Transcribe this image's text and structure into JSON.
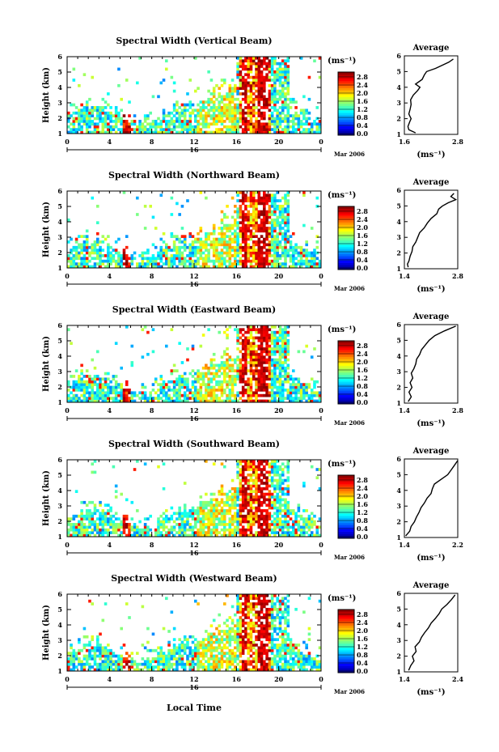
{
  "figure": {
    "xlabel": "Local Time",
    "colorbar_unit": "(ms⁻¹)",
    "average_title": "Average",
    "average_unit": "(ms⁻¹)",
    "date_label": "Mar 2006",
    "day_label": "16"
  },
  "chart_data": [
    {
      "type": "heatmap",
      "title": "Spectral Width (Vertical Beam)",
      "xlabel": "Local Time",
      "ylabel": "Height (km)",
      "x_ticks": [
        "0",
        "4",
        "8",
        "12",
        "16",
        "20",
        "0"
      ],
      "y_ticks": [
        "1",
        "2",
        "3",
        "4",
        "5",
        "6"
      ],
      "xlim": [
        0,
        24
      ],
      "ylim": [
        1,
        6
      ],
      "colorbar": {
        "ticks": [
          "0.0",
          "0.4",
          "0.8",
          "1.2",
          "1.6",
          "2.0",
          "2.4",
          "2.8"
        ],
        "range": [
          0.0,
          2.8
        ]
      },
      "average": {
        "xlim": [
          1.6,
          2.8
        ],
        "xticks": [
          "1.6",
          "2.8"
        ],
        "profile": [
          [
            1.1,
            1.85
          ],
          [
            1.3,
            1.7
          ],
          [
            1.5,
            1.68
          ],
          [
            1.8,
            1.72
          ],
          [
            2.0,
            1.75
          ],
          [
            2.3,
            1.7
          ],
          [
            2.6,
            1.73
          ],
          [
            2.9,
            1.75
          ],
          [
            3.2,
            1.74
          ],
          [
            3.5,
            1.8
          ],
          [
            3.8,
            1.9
          ],
          [
            4.0,
            1.95
          ],
          [
            4.2,
            1.85
          ],
          [
            4.5,
            2.0
          ],
          [
            4.8,
            2.05
          ],
          [
            5.0,
            2.1
          ],
          [
            5.2,
            2.3
          ],
          [
            5.4,
            2.45
          ],
          [
            5.6,
            2.6
          ],
          [
            5.8,
            2.7
          ]
        ]
      }
    },
    {
      "type": "heatmap",
      "title": "Spectral Width (Northward Beam)",
      "xlabel": "Local Time",
      "ylabel": "Height (km)",
      "x_ticks": [
        "0",
        "4",
        "8",
        "12",
        "16",
        "20",
        "0"
      ],
      "y_ticks": [
        "1",
        "2",
        "3",
        "4",
        "5",
        "6"
      ],
      "xlim": [
        0,
        24
      ],
      "ylim": [
        1,
        6
      ],
      "colorbar": {
        "ticks": [
          "0.0",
          "0.4",
          "0.8",
          "1.2",
          "1.6",
          "2.0",
          "2.4",
          "2.8"
        ],
        "range": [
          0.0,
          2.8
        ]
      },
      "average": {
        "xlim": [
          1.4,
          2.8
        ],
        "xticks": [
          "1.4",
          "2.8"
        ],
        "profile": [
          [
            1.1,
            1.5
          ],
          [
            1.3,
            1.48
          ],
          [
            1.5,
            1.52
          ],
          [
            1.8,
            1.55
          ],
          [
            2.1,
            1.6
          ],
          [
            2.4,
            1.62
          ],
          [
            2.7,
            1.7
          ],
          [
            3.0,
            1.75
          ],
          [
            3.3,
            1.8
          ],
          [
            3.6,
            1.92
          ],
          [
            3.9,
            2.0
          ],
          [
            4.2,
            2.1
          ],
          [
            4.5,
            2.25
          ],
          [
            4.8,
            2.3
          ],
          [
            5.0,
            2.4
          ],
          [
            5.2,
            2.55
          ],
          [
            5.4,
            2.75
          ],
          [
            5.6,
            2.62
          ],
          [
            5.8,
            2.7
          ]
        ]
      }
    },
    {
      "type": "heatmap",
      "title": "Spectral Width (Eastward Beam)",
      "xlabel": "Local Time",
      "ylabel": "Height (km)",
      "x_ticks": [
        "0",
        "4",
        "8",
        "12",
        "16",
        "20",
        "0"
      ],
      "y_ticks": [
        "1",
        "2",
        "3",
        "4",
        "5",
        "6"
      ],
      "xlim": [
        0,
        24
      ],
      "ylim": [
        1,
        6
      ],
      "colorbar": {
        "ticks": [
          "0.0",
          "0.4",
          "0.8",
          "1.2",
          "1.6",
          "2.0",
          "2.4",
          "2.8"
        ],
        "range": [
          0.0,
          2.8
        ]
      },
      "average": {
        "xlim": [
          1.4,
          2.8
        ],
        "xticks": [
          "1.4",
          "2.8"
        ],
        "profile": [
          [
            1.1,
            1.5
          ],
          [
            1.4,
            1.58
          ],
          [
            1.7,
            1.52
          ],
          [
            2.0,
            1.6
          ],
          [
            2.3,
            1.55
          ],
          [
            2.6,
            1.62
          ],
          [
            2.9,
            1.58
          ],
          [
            3.2,
            1.65
          ],
          [
            3.5,
            1.7
          ],
          [
            3.8,
            1.72
          ],
          [
            4.1,
            1.8
          ],
          [
            4.4,
            1.85
          ],
          [
            4.7,
            1.95
          ],
          [
            5.0,
            2.05
          ],
          [
            5.3,
            2.2
          ],
          [
            5.6,
            2.45
          ],
          [
            5.9,
            2.75
          ]
        ]
      }
    },
    {
      "type": "heatmap",
      "title": "Spectral Width (Southward Beam)",
      "xlabel": "Local Time",
      "ylabel": "Height (km)",
      "x_ticks": [
        "0",
        "4",
        "8",
        "12",
        "16",
        "20",
        "0"
      ],
      "y_ticks": [
        "1",
        "2",
        "3",
        "4",
        "5",
        "6"
      ],
      "xlim": [
        0,
        24
      ],
      "ylim": [
        1,
        6
      ],
      "colorbar": {
        "ticks": [
          "0.0",
          "0.4",
          "0.8",
          "1.2",
          "1.6",
          "2.0",
          "2.4",
          "2.8"
        ],
        "range": [
          0.0,
          2.8
        ]
      },
      "average": {
        "xlim": [
          1.4,
          2.2
        ],
        "xticks": [
          "1.4",
          "2.2"
        ],
        "profile": [
          [
            1.1,
            1.42
          ],
          [
            1.4,
            1.48
          ],
          [
            1.7,
            1.5
          ],
          [
            2.0,
            1.55
          ],
          [
            2.3,
            1.58
          ],
          [
            2.6,
            1.62
          ],
          [
            2.9,
            1.65
          ],
          [
            3.2,
            1.7
          ],
          [
            3.5,
            1.74
          ],
          [
            3.8,
            1.8
          ],
          [
            4.1,
            1.82
          ],
          [
            4.4,
            1.85
          ],
          [
            4.7,
            1.95
          ],
          [
            5.0,
            2.05
          ],
          [
            5.3,
            2.1
          ],
          [
            5.6,
            2.15
          ],
          [
            5.9,
            2.2
          ]
        ]
      }
    },
    {
      "type": "heatmap",
      "title": "Spectral Width (Westward Beam)",
      "xlabel": "Local Time",
      "ylabel": "Height (km)",
      "x_ticks": [
        "0",
        "4",
        "8",
        "12",
        "16",
        "20",
        "0"
      ],
      "y_ticks": [
        "1",
        "2",
        "3",
        "4",
        "5",
        "6"
      ],
      "xlim": [
        0,
        24
      ],
      "ylim": [
        1,
        6
      ],
      "colorbar": {
        "ticks": [
          "0.0",
          "0.4",
          "0.8",
          "1.2",
          "1.6",
          "2.0",
          "2.4",
          "2.8"
        ],
        "range": [
          0.0,
          2.8
        ]
      },
      "average": {
        "xlim": [
          1.4,
          2.4
        ],
        "xticks": [
          "1.4",
          "2.4"
        ],
        "profile": [
          [
            1.1,
            1.48
          ],
          [
            1.4,
            1.52
          ],
          [
            1.7,
            1.58
          ],
          [
            2.0,
            1.55
          ],
          [
            2.3,
            1.62
          ],
          [
            2.6,
            1.6
          ],
          [
            2.9,
            1.68
          ],
          [
            3.2,
            1.72
          ],
          [
            3.5,
            1.78
          ],
          [
            3.8,
            1.85
          ],
          [
            4.1,
            1.9
          ],
          [
            4.4,
            1.98
          ],
          [
            4.7,
            2.05
          ],
          [
            5.0,
            2.1
          ],
          [
            5.3,
            2.2
          ],
          [
            5.6,
            2.28
          ],
          [
            5.9,
            2.35
          ]
        ]
      }
    }
  ]
}
